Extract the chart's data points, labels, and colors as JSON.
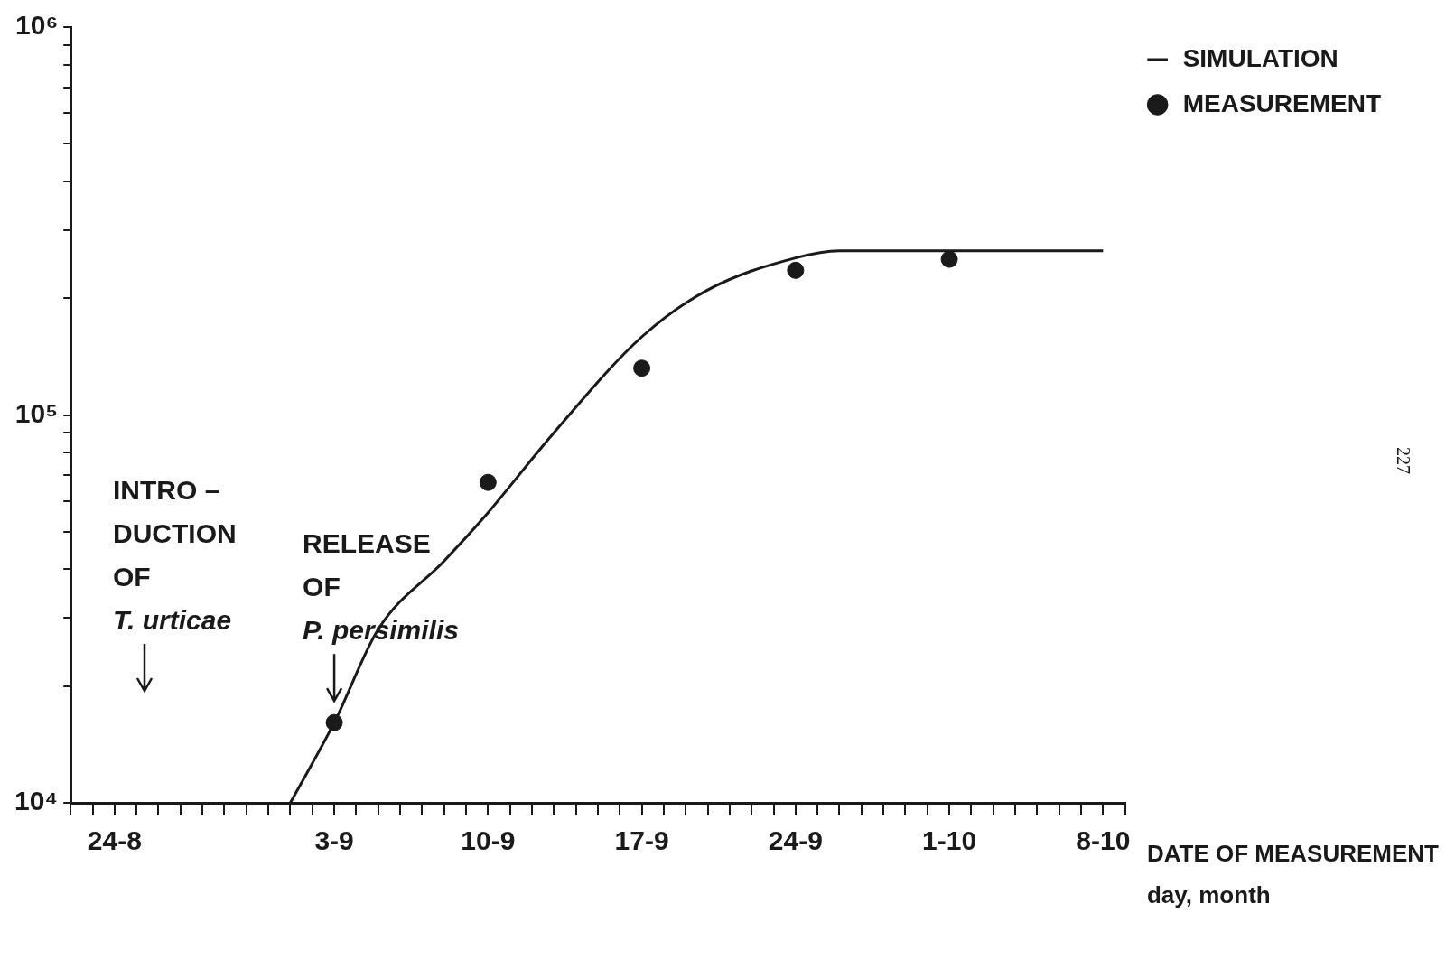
{
  "chart_data": {
    "type": "line",
    "xlabel": "DATE OF MEASUREMENT\nday, month",
    "log": "y",
    "grid": false,
    "legend": "top right",
    "xlim": [
      "--08-22",
      "--10-09"
    ],
    "xticks": [
      {
        "value": "--08-22",
        "label": null
      },
      {
        "value": "--08-23",
        "label": null
      },
      {
        "value": "--08-24",
        "label": "24-8"
      },
      {
        "value": "--08-25",
        "label": null
      },
      {
        "value": "--08-26",
        "label": null
      },
      {
        "value": "--08-27",
        "label": null
      },
      {
        "value": "--08-28",
        "label": null
      },
      {
        "value": "--08-29",
        "label": null
      },
      {
        "value": "--08-30",
        "label": null
      },
      {
        "value": "--08-31",
        "label": null
      },
      {
        "value": "--09-01",
        "label": null
      },
      {
        "value": "--09-02",
        "label": null
      },
      {
        "value": "--09-03",
        "label": "3-9"
      },
      {
        "value": "--09-04",
        "label": null
      },
      {
        "value": "--09-05",
        "label": null
      },
      {
        "value": "--09-06",
        "label": null
      },
      {
        "value": "--09-07",
        "label": null
      },
      {
        "value": "--09-08",
        "label": null
      },
      {
        "value": "--09-09",
        "label": null
      },
      {
        "value": "--09-10",
        "label": "10-9"
      },
      {
        "value": "--09-11",
        "label": null
      },
      {
        "value": "--09-12",
        "label": null
      },
      {
        "value": "--09-13",
        "label": null
      },
      {
        "value": "--09-14",
        "label": null
      },
      {
        "value": "--09-15",
        "label": null
      },
      {
        "value": "--09-16",
        "label": null
      },
      {
        "value": "--09-17",
        "label": "17-9"
      },
      {
        "value": "--09-18",
        "label": null
      },
      {
        "value": "--09-19",
        "label": null
      },
      {
        "value": "--09-20",
        "label": null
      },
      {
        "value": "--09-21",
        "label": null
      },
      {
        "value": "--09-22",
        "label": null
      },
      {
        "value": "--09-23",
        "label": null
      },
      {
        "value": "--09-24",
        "label": "24-9"
      },
      {
        "value": "--09-25",
        "label": null
      },
      {
        "value": "--09-26",
        "label": null
      },
      {
        "value": "--09-27",
        "label": null
      },
      {
        "value": "--09-28",
        "label": null
      },
      {
        "value": "--09-29",
        "label": null
      },
      {
        "value": "--09-30",
        "label": null
      },
      {
        "value": "--10-01",
        "label": "1-10"
      },
      {
        "value": "--10-02",
        "label": null
      },
      {
        "value": "--10-03",
        "label": null
      },
      {
        "value": "--10-04",
        "label": null
      },
      {
        "value": "--10-05",
        "label": null
      },
      {
        "value": "--10-06",
        "label": null
      },
      {
        "value": "--10-07",
        "label": null
      },
      {
        "value": "--10-08",
        "label": "8-10"
      },
      {
        "value": "--10-09",
        "label": null
      }
    ],
    "ylim": [
      10000,
      1000000
    ],
    "yticks": [
      {
        "value": 10000,
        "label": "10⁴"
      },
      {
        "value": 20000,
        "label": null
      },
      {
        "value": 30000,
        "label": null
      },
      {
        "value": 40000,
        "label": null
      },
      {
        "value": 50000,
        "label": null
      },
      {
        "value": 60000,
        "label": null
      },
      {
        "value": 70000,
        "label": null
      },
      {
        "value": 80000,
        "label": null
      },
      {
        "value": 90000,
        "label": null
      },
      {
        "value": 100000,
        "label": "10⁵"
      },
      {
        "value": 200000,
        "label": null
      },
      {
        "value": 300000,
        "label": null
      },
      {
        "value": 400000,
        "label": null
      },
      {
        "value": 500000,
        "label": null
      },
      {
        "value": 600000,
        "label": null
      },
      {
        "value": 700000,
        "label": null
      },
      {
        "value": 800000,
        "label": null
      },
      {
        "value": 900000,
        "label": null
      },
      {
        "value": 1000000,
        "label": "10⁶"
      }
    ],
    "series": [
      {
        "name": "SIMULATION",
        "color": "#1a1a1a",
        "marker": "none",
        "line_style": "solid",
        "x": [
          "--09-01",
          "--09-03",
          "--09-05",
          "--09-08",
          "--09-10",
          "--09-13",
          "--09-17",
          "--09-20",
          "--09-24",
          "--09-26",
          "--10-08"
        ],
        "values": [
          10000,
          16100,
          28000,
          42000,
          56000,
          90000,
          159000,
          210000,
          254000,
          265000,
          265000
        ]
      },
      {
        "name": "MEASUREMENT",
        "type": "scatter",
        "color": "#1a1a1a",
        "marker": "circle",
        "x": [
          "--09-03",
          "--09-10",
          "--09-17",
          "--09-24",
          "--10-01"
        ],
        "values": [
          16100,
          67000,
          132000,
          236000,
          252000
        ]
      }
    ],
    "annotations": [
      "INTRO –\nDUCTION\nOF\nT. urticae",
      {
        "text": "RELEASE\nOF\nP. persimilis",
        "x": "--09-03",
        "y": 16100
      },
      "227"
    ]
  }
}
